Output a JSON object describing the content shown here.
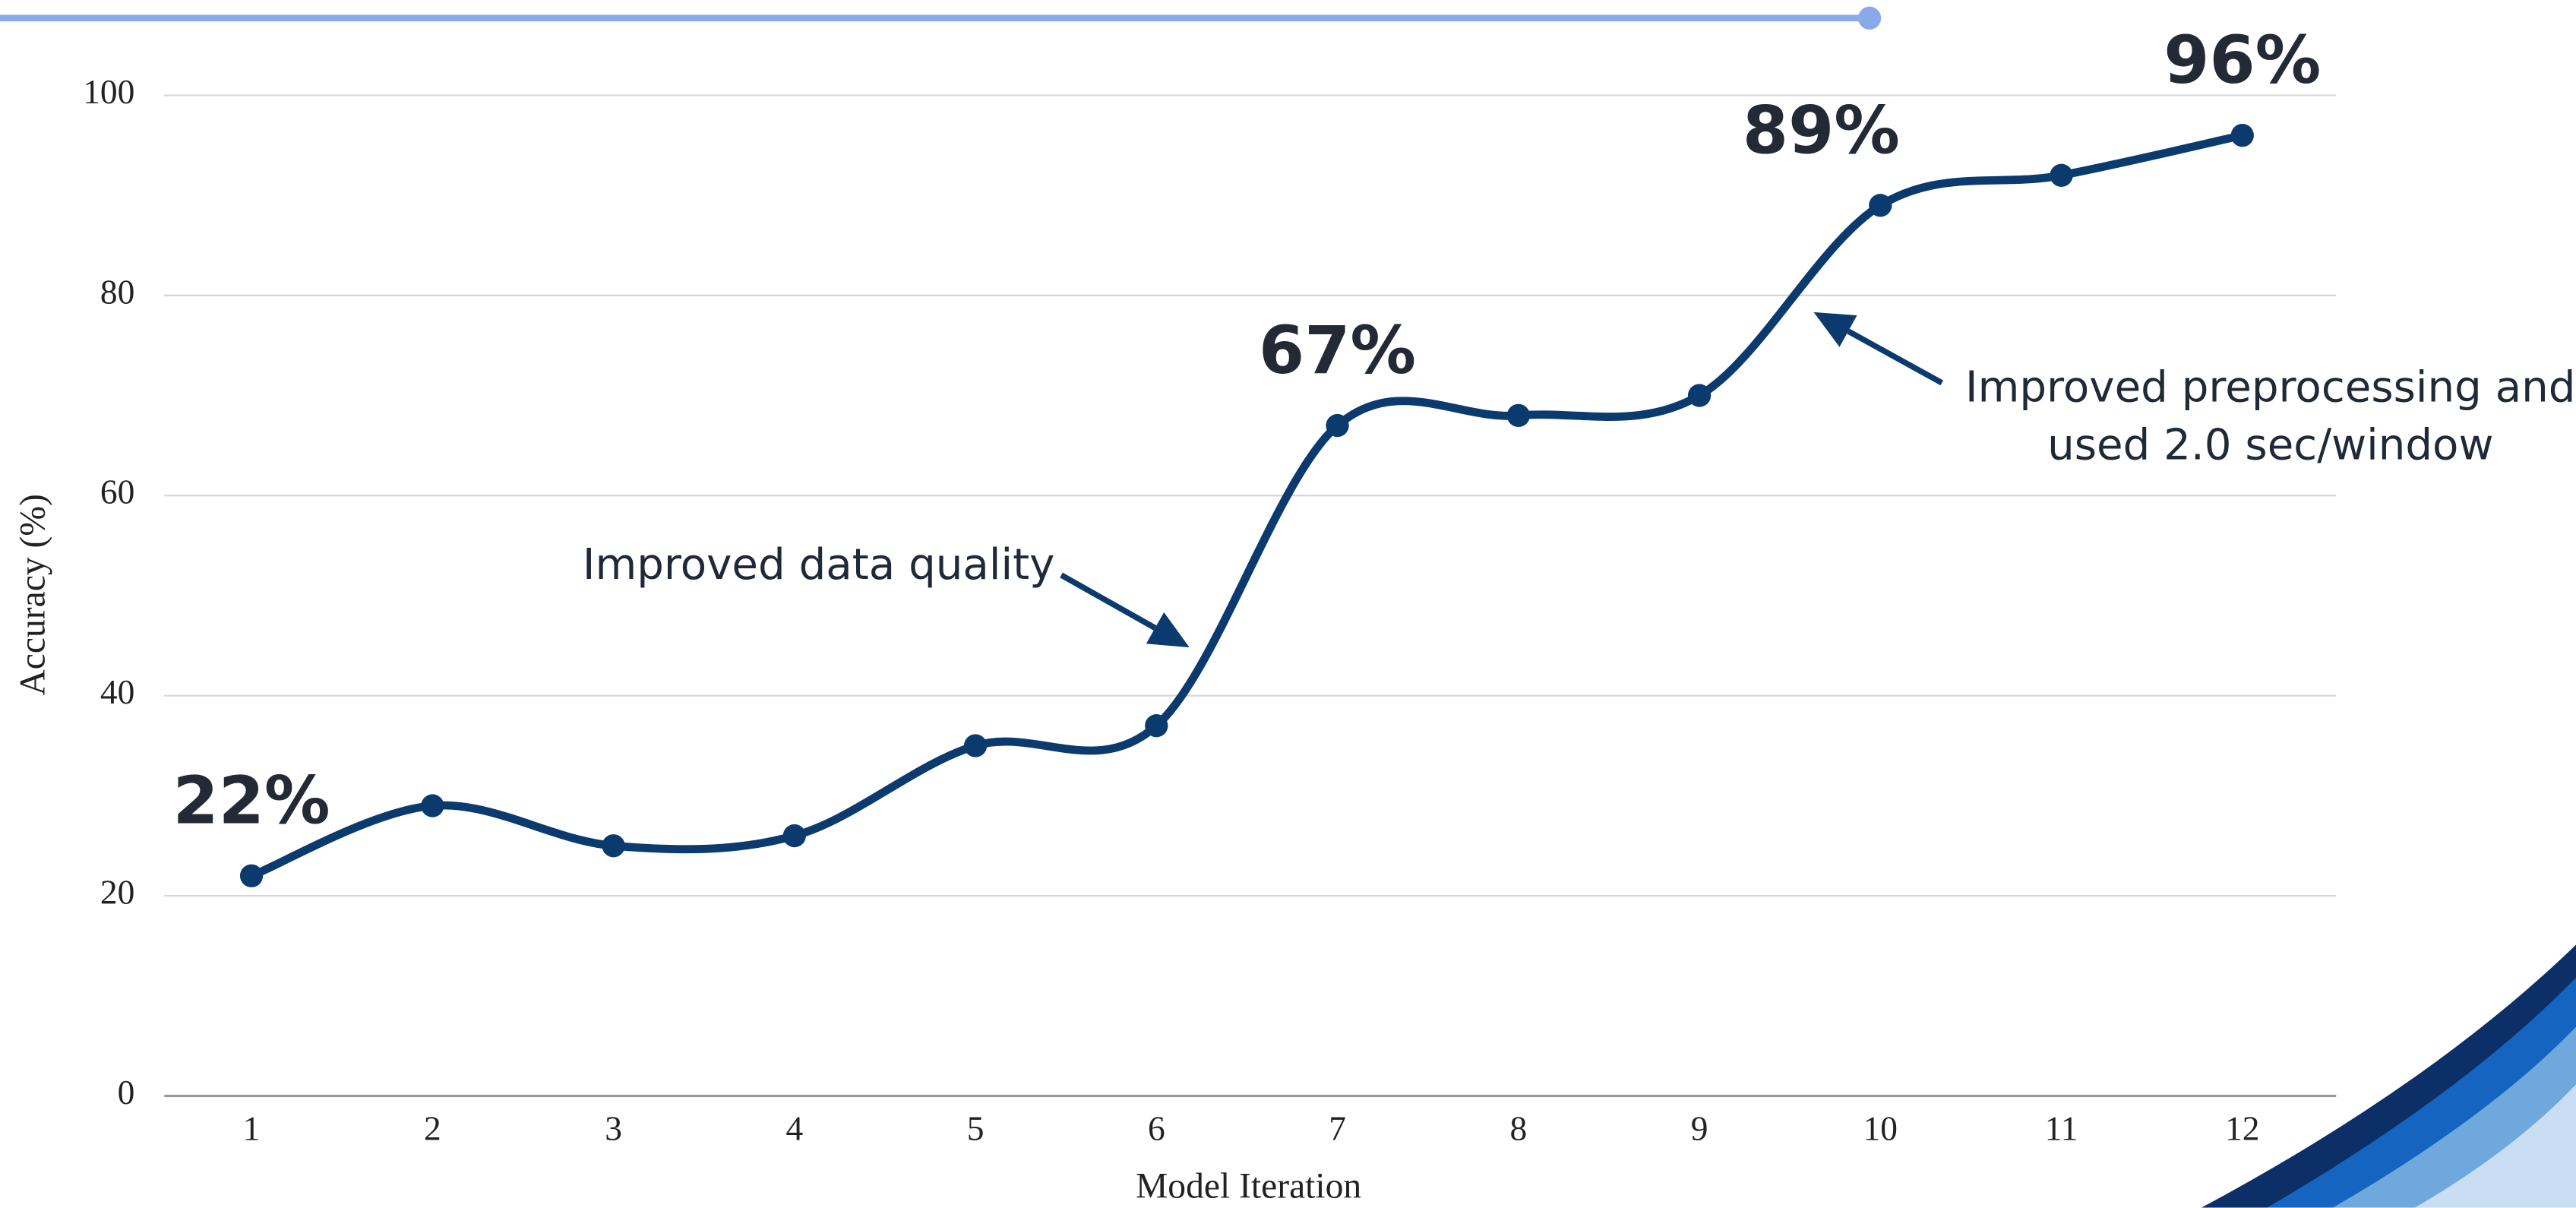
{
  "chart_data": {
    "type": "line",
    "x_label": "Model Iteration",
    "y_label": "Accuracy (%)",
    "categories": [
      "1",
      "2",
      "3",
      "4",
      "5",
      "6",
      "7",
      "8",
      "9",
      "10",
      "11",
      "12"
    ],
    "series": [
      {
        "name": "Accuracy",
        "color": "#0b3a6e",
        "values": [
          22,
          29,
          25,
          26,
          35,
          37,
          67,
          68,
          70,
          89,
          92,
          96
        ],
        "value_labels": [
          "22%",
          null,
          null,
          null,
          null,
          null,
          "67%",
          null,
          null,
          "89%",
          null,
          "96%"
        ]
      }
    ],
    "ylim": [
      0,
      100
    ],
    "yticks": [
      0,
      20,
      40,
      60,
      80,
      100
    ],
    "grid": true,
    "annotations": [
      {
        "lines": [
          "Improved data quality"
        ]
      },
      {
        "lines": [
          "Improved preprocessing and",
          "used 2.0 sec/window"
        ]
      }
    ]
  }
}
